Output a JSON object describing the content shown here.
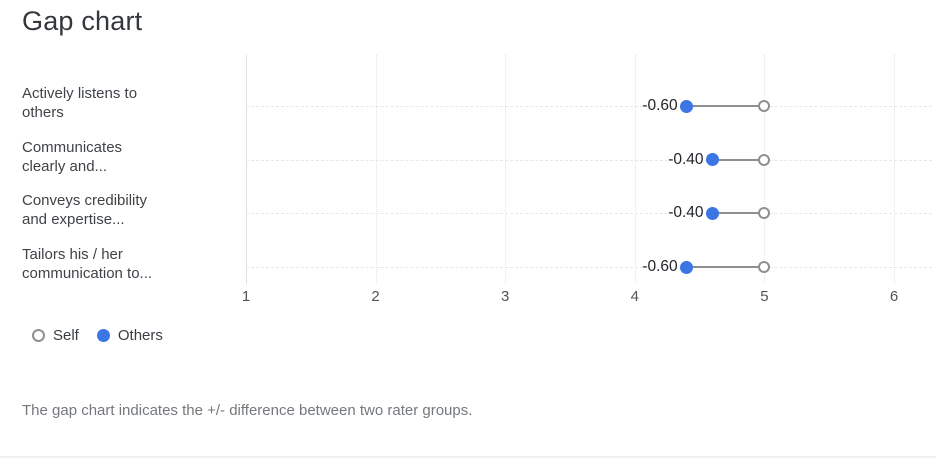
{
  "title": "Gap chart",
  "footer": "The gap chart indicates the +/- difference between two rater groups.",
  "colors": {
    "others_blue": "#3c76e4",
    "self_gray": "#8d9093",
    "grid": "#e5e5e8"
  },
  "chart_data": {
    "type": "dumbbell",
    "title": "Gap chart",
    "categories": [
      "Actively listens to\nothers",
      "Communicates\nclearly and...",
      "Conveys credibility\nand expertise...",
      "Tailors his / her\ncommunication to..."
    ],
    "series": [
      {
        "name": "Self",
        "marker": "open-circle",
        "color": "#8d9093",
        "values": [
          5.0,
          5.0,
          5.0,
          5.0
        ]
      },
      {
        "name": "Others",
        "marker": "filled-circle",
        "color": "#3c76e4",
        "values": [
          4.4,
          4.6,
          4.6,
          4.4
        ]
      }
    ],
    "gap_labels": [
      "-0.60",
      "-0.40",
      "-0.40",
      "-0.60"
    ],
    "x_axis": {
      "min": 1,
      "max": 6,
      "ticks": [
        1,
        2,
        3,
        4,
        5,
        6
      ]
    },
    "grid": true,
    "legend": {
      "position": "bottom-left",
      "items": [
        {
          "label": "Self"
        },
        {
          "label": "Others"
        }
      ]
    }
  }
}
